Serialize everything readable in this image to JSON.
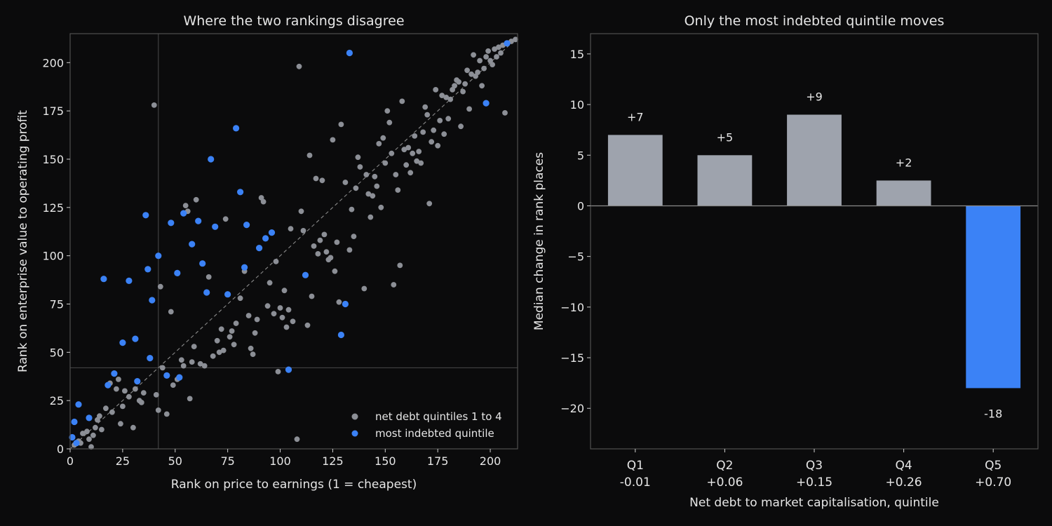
{
  "chart_data": [
    {
      "type": "scatter",
      "title": "Where the two rankings disagree",
      "xlabel": "Rank on price to earnings (1 = cheapest)",
      "ylabel": "Rank on enterprise value to operating profit",
      "xlim": [
        0,
        213
      ],
      "ylim": [
        0,
        215
      ],
      "xticks": [
        0,
        25,
        50,
        75,
        100,
        125,
        150,
        175,
        200
      ],
      "yticks": [
        0,
        25,
        50,
        75,
        100,
        125,
        150,
        175,
        200
      ],
      "reference_lines": {
        "vertical_x": 42,
        "horizontal_y": 42,
        "diagonal": "y = x"
      },
      "legend_position": "lower-right",
      "series": [
        {
          "name": "net debt quintiles 1 to 4",
          "color": "#8c8f96",
          "points": [
            [
              2,
              2
            ],
            [
              4,
              4
            ],
            [
              5,
              3
            ],
            [
              6,
              8
            ],
            [
              8,
              9
            ],
            [
              9,
              5
            ],
            [
              10,
              1
            ],
            [
              11,
              7
            ],
            [
              12,
              11
            ],
            [
              13,
              15
            ],
            [
              14,
              17
            ],
            [
              15,
              10
            ],
            [
              17,
              21
            ],
            [
              18,
              33
            ],
            [
              19,
              34
            ],
            [
              20,
              19
            ],
            [
              22,
              31
            ],
            [
              23,
              36
            ],
            [
              24,
              13
            ],
            [
              25,
              22
            ],
            [
              26,
              30
            ],
            [
              28,
              27
            ],
            [
              30,
              11
            ],
            [
              31,
              31
            ],
            [
              33,
              25
            ],
            [
              34,
              24
            ],
            [
              35,
              29
            ],
            [
              40,
              178
            ],
            [
              41,
              28
            ],
            [
              42,
              20
            ],
            [
              43,
              84
            ],
            [
              44,
              42
            ],
            [
              46,
              18
            ],
            [
              48,
              71
            ],
            [
              49,
              33
            ],
            [
              51,
              36
            ],
            [
              53,
              46
            ],
            [
              54,
              43
            ],
            [
              55,
              126
            ],
            [
              56,
              123
            ],
            [
              57,
              26
            ],
            [
              58,
              45
            ],
            [
              59,
              53
            ],
            [
              60,
              129
            ],
            [
              62,
              44
            ],
            [
              64,
              43
            ],
            [
              66,
              89
            ],
            [
              68,
              48
            ],
            [
              70,
              56
            ],
            [
              71,
              50
            ],
            [
              72,
              62
            ],
            [
              73,
              51
            ],
            [
              74,
              119
            ],
            [
              76,
              58
            ],
            [
              77,
              61
            ],
            [
              78,
              54
            ],
            [
              79,
              65
            ],
            [
              81,
              78
            ],
            [
              83,
              92
            ],
            [
              85,
              69
            ],
            [
              86,
              52
            ],
            [
              87,
              49
            ],
            [
              88,
              60
            ],
            [
              89,
              67
            ],
            [
              91,
              130
            ],
            [
              92,
              128
            ],
            [
              94,
              74
            ],
            [
              95,
              86
            ],
            [
              97,
              70
            ],
            [
              98,
              97
            ],
            [
              99,
              40
            ],
            [
              100,
              73
            ],
            [
              101,
              68
            ],
            [
              102,
              82
            ],
            [
              103,
              63
            ],
            [
              104,
              72
            ],
            [
              105,
              114
            ],
            [
              106,
              66
            ],
            [
              108,
              5
            ],
            [
              109,
              198
            ],
            [
              110,
              123
            ],
            [
              111,
              113
            ],
            [
              113,
              64
            ],
            [
              114,
              152
            ],
            [
              115,
              79
            ],
            [
              116,
              105
            ],
            [
              117,
              140
            ],
            [
              118,
              101
            ],
            [
              119,
              108
            ],
            [
              120,
              139
            ],
            [
              121,
              111
            ],
            [
              122,
              102
            ],
            [
              123,
              98
            ],
            [
              124,
              99
            ],
            [
              125,
              160
            ],
            [
              126,
              92
            ],
            [
              127,
              107
            ],
            [
              128,
              76
            ],
            [
              129,
              168
            ],
            [
              131,
              138
            ],
            [
              133,
              103
            ],
            [
              134,
              124
            ],
            [
              135,
              110
            ],
            [
              136,
              135
            ],
            [
              137,
              151
            ],
            [
              138,
              146
            ],
            [
              140,
              83
            ],
            [
              141,
              142
            ],
            [
              142,
              132
            ],
            [
              143,
              120
            ],
            [
              144,
              131
            ],
            [
              145,
              141
            ],
            [
              146,
              136
            ],
            [
              147,
              158
            ],
            [
              148,
              125
            ],
            [
              149,
              161
            ],
            [
              150,
              148
            ],
            [
              151,
              175
            ],
            [
              152,
              169
            ],
            [
              153,
              153
            ],
            [
              154,
              85
            ],
            [
              155,
              142
            ],
            [
              156,
              134
            ],
            [
              157,
              95
            ],
            [
              158,
              180
            ],
            [
              159,
              155
            ],
            [
              160,
              147
            ],
            [
              161,
              156
            ],
            [
              162,
              143
            ],
            [
              163,
              153
            ],
            [
              164,
              162
            ],
            [
              165,
              149
            ],
            [
              166,
              154
            ],
            [
              167,
              148
            ],
            [
              168,
              164
            ],
            [
              169,
              177
            ],
            [
              170,
              173
            ],
            [
              171,
              127
            ],
            [
              172,
              159
            ],
            [
              173,
              165
            ],
            [
              174,
              186
            ],
            [
              175,
              157
            ],
            [
              176,
              170
            ],
            [
              177,
              183
            ],
            [
              178,
              163
            ],
            [
              179,
              182
            ],
            [
              180,
              171
            ],
            [
              181,
              181
            ],
            [
              182,
              186
            ],
            [
              183,
              188
            ],
            [
              184,
              191
            ],
            [
              185,
              190
            ],
            [
              186,
              167
            ],
            [
              187,
              185
            ],
            [
              188,
              189
            ],
            [
              189,
              196
            ],
            [
              190,
              176
            ],
            [
              191,
              194
            ],
            [
              192,
              204
            ],
            [
              193,
              193
            ],
            [
              194,
              195
            ],
            [
              195,
              201
            ],
            [
              196,
              188
            ],
            [
              197,
              197
            ],
            [
              198,
              203
            ],
            [
              199,
              206
            ],
            [
              200,
              201
            ],
            [
              201,
              199
            ],
            [
              202,
              207
            ],
            [
              203,
              203
            ],
            [
              204,
              208
            ],
            [
              205,
              205
            ],
            [
              206,
              209
            ],
            [
              207,
              174
            ],
            [
              208,
              210
            ],
            [
              210,
              211
            ],
            [
              212,
              212
            ]
          ]
        },
        {
          "name": "most indebted quintile",
          "color": "#3b82f6",
          "points": [
            [
              1,
              6
            ],
            [
              2,
              14
            ],
            [
              3,
              3
            ],
            [
              4,
              23
            ],
            [
              9,
              16
            ],
            [
              16,
              88
            ],
            [
              18,
              33
            ],
            [
              21,
              39
            ],
            [
              25,
              55
            ],
            [
              28,
              87
            ],
            [
              31,
              57
            ],
            [
              32,
              35
            ],
            [
              36,
              121
            ],
            [
              37,
              93
            ],
            [
              38,
              47
            ],
            [
              39,
              77
            ],
            [
              42,
              100
            ],
            [
              46,
              38
            ],
            [
              48,
              117
            ],
            [
              51,
              91
            ],
            [
              52,
              37
            ],
            [
              54,
              122
            ],
            [
              58,
              106
            ],
            [
              61,
              118
            ],
            [
              63,
              96
            ],
            [
              65,
              81
            ],
            [
              67,
              150
            ],
            [
              69,
              115
            ],
            [
              75,
              80
            ],
            [
              79,
              166
            ],
            [
              81,
              133
            ],
            [
              83,
              94
            ],
            [
              84,
              116
            ],
            [
              90,
              104
            ],
            [
              93,
              109
            ],
            [
              96,
              112
            ],
            [
              104,
              41
            ],
            [
              112,
              90
            ],
            [
              129,
              59
            ],
            [
              131,
              75
            ],
            [
              133,
              205
            ],
            [
              198,
              179
            ],
            [
              208,
              210
            ]
          ]
        }
      ]
    },
    {
      "type": "bar",
      "title": "Only the most indebted quintile moves",
      "xlabel": "Net debt to market capitalisation, quintile",
      "ylabel": "Median change in rank places",
      "categories": [
        "Q1\n-0.01",
        "Q2\n+0.06",
        "Q3\n+0.15",
        "Q4\n+0.26",
        "Q5\n+0.70"
      ],
      "values": [
        7,
        5,
        9,
        2.5,
        -18
      ],
      "data_labels": [
        "+7",
        "+5",
        "+9",
        "+2",
        "-18"
      ],
      "ylim": [
        -24,
        17
      ],
      "yticks": [
        -20,
        -15,
        -10,
        -5,
        0,
        5,
        10,
        15
      ],
      "colors": [
        "#9ea3ad",
        "#9ea3ad",
        "#9ea3ad",
        "#9ea3ad",
        "#3b82f6"
      ]
    }
  ]
}
